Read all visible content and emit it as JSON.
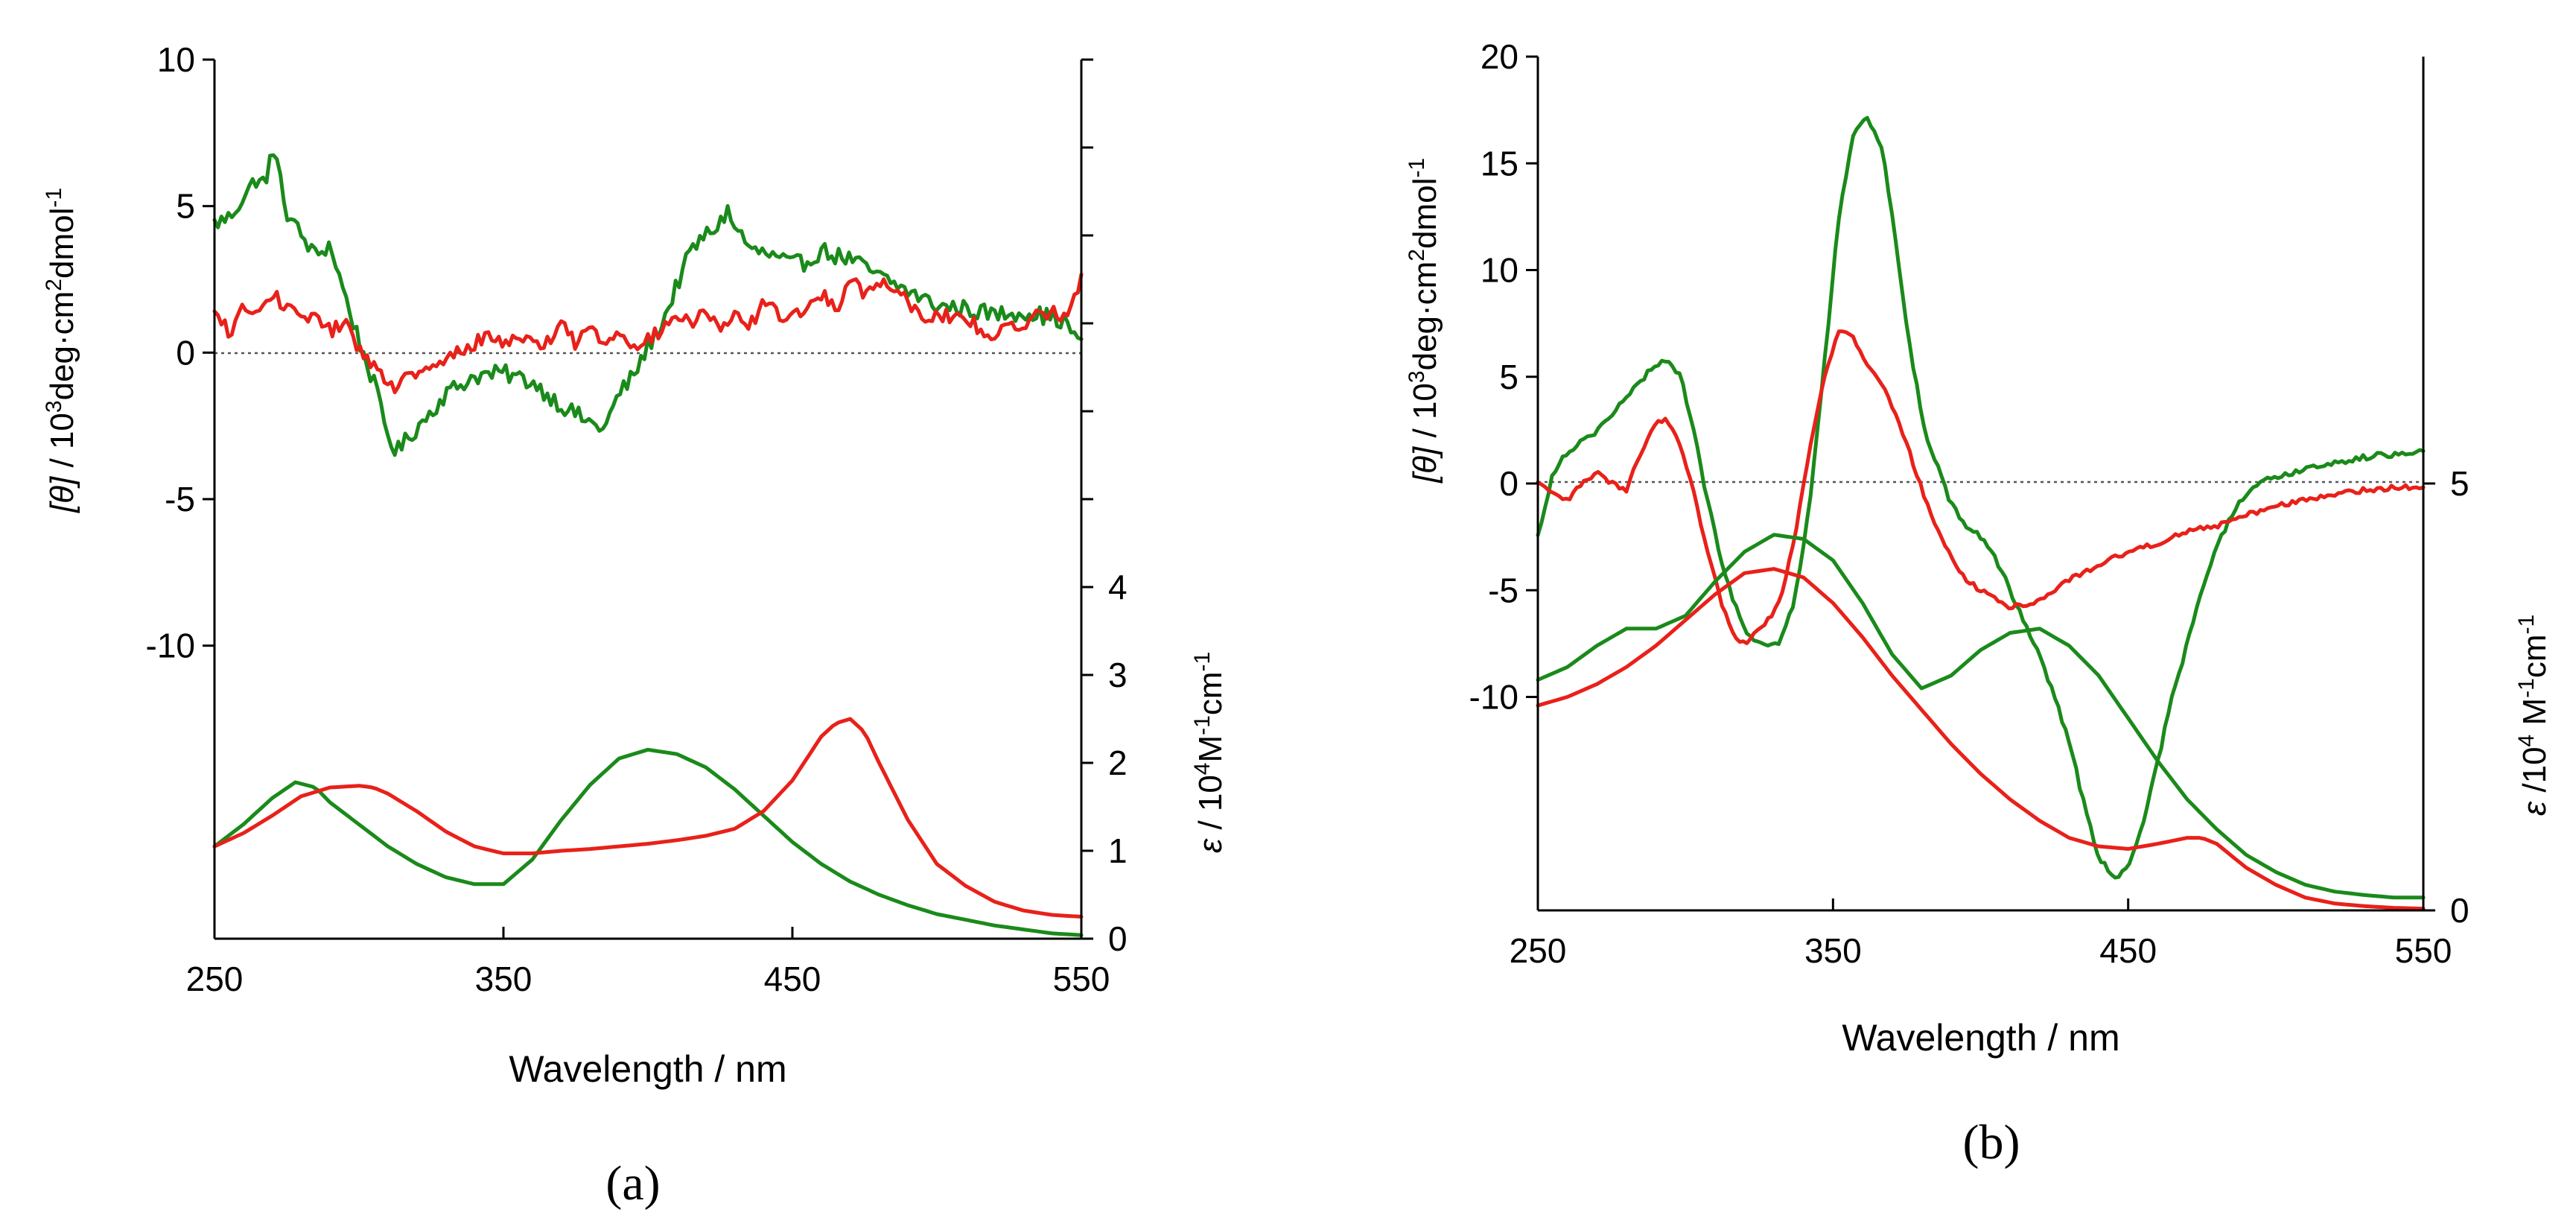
{
  "chart_data": [
    {
      "panel_label": "(a)",
      "type": "line",
      "xlabel": "Wavelength / nm",
      "x_ticks": [
        250,
        350,
        450,
        550
      ],
      "xlim": [
        250,
        550
      ],
      "cd_axis": {
        "label_a": "[θ]",
        "label_b": " / 10",
        "label_sup": "3",
        "label_c": "deg·cm",
        "label_sup2": "2",
        "label_d": "dmol",
        "label_sup3": "-1",
        "ylim": [
          -20,
          10
        ],
        "tick_values": [
          -10,
          -5,
          0,
          5,
          10
        ],
        "tick_labels": [
          "-10",
          "-5",
          "0",
          "5",
          "10"
        ]
      },
      "abs_axis": {
        "label_a": "ε",
        "label_b": " / 10",
        "label_sup": "4",
        "label_c": "M",
        "label_sup2": "-1",
        "label_d": "cm",
        "label_sup3": "-1",
        "ylim": [
          0,
          10
        ],
        "tick_values": [
          0,
          1,
          2,
          3,
          4
        ],
        "tick_labels": [
          "0",
          "1",
          "2",
          "3",
          "4"
        ],
        "minor_ticks": [
          5,
          6,
          7,
          8,
          9,
          10
        ]
      },
      "series": [
        {
          "name": "green CD",
          "axis": "cd",
          "color": "#1a8a1a",
          "x": [
            250,
            255,
            260,
            265,
            268,
            270,
            272,
            275,
            280,
            285,
            290,
            295,
            300,
            305,
            310,
            313,
            318,
            325,
            330,
            340,
            350,
            360,
            370,
            380,
            385,
            390,
            395,
            400,
            405,
            410,
            415,
            420,
            425,
            428,
            430,
            432,
            435,
            440,
            445,
            450,
            455,
            460,
            465,
            470,
            475,
            480,
            490,
            500,
            510,
            520,
            530,
            540,
            545,
            550
          ],
          "y": [
            4.4,
            4.6,
            5.3,
            6.0,
            5.7,
            7.2,
            6.2,
            4.8,
            4.0,
            3.3,
            3.7,
            2.0,
            0.4,
            -1.0,
            -2.8,
            -3.4,
            -2.8,
            -2.0,
            -1.4,
            -0.8,
            -0.7,
            -1.0,
            -1.8,
            -2.4,
            -2.6,
            -1.4,
            -0.8,
            0.2,
            1.0,
            2.3,
            3.5,
            4.0,
            4.4,
            5.0,
            4.1,
            4.2,
            3.5,
            3.4,
            3.2,
            3.0,
            3.1,
            3.5,
            3.3,
            3.2,
            2.9,
            2.6,
            2.1,
            1.6,
            1.5,
            1.3,
            1.4,
            1.2,
            1.0,
            0.2
          ],
          "noise": 0.3
        },
        {
          "name": "red CD",
          "axis": "cd",
          "color": "#e8211a",
          "x": [
            250,
            255,
            260,
            265,
            270,
            275,
            280,
            285,
            290,
            295,
            300,
            305,
            310,
            315,
            320,
            325,
            330,
            335,
            340,
            345,
            350,
            355,
            360,
            365,
            370,
            375,
            380,
            385,
            390,
            395,
            400,
            405,
            410,
            415,
            420,
            425,
            430,
            435,
            440,
            445,
            450,
            455,
            460,
            465,
            470,
            475,
            480,
            485,
            490,
            495,
            500,
            510,
            520,
            530,
            540,
            545,
            550
          ],
          "y": [
            1.3,
            0.7,
            1.5,
            1.3,
            2.0,
            1.6,
            1.0,
            1.4,
            0.7,
            1.0,
            0.2,
            -0.4,
            -1.2,
            -1.0,
            -0.7,
            -0.6,
            -0.3,
            0.1,
            0.3,
            0.6,
            0.3,
            0.7,
            0.2,
            0.4,
            1.0,
            0.3,
            0.9,
            0.3,
            0.8,
            0.3,
            0.4,
            0.8,
            1.3,
            0.9,
            1.5,
            0.7,
            1.2,
            0.9,
            1.7,
            1.3,
            1.2,
            1.6,
            2.0,
            1.4,
            2.7,
            2.0,
            2.4,
            2.3,
            1.8,
            1.2,
            1.3,
            1.1,
            0.6,
            1.0,
            1.5,
            1.2,
            2.5
          ],
          "noise": 0.25
        },
        {
          "name": "green absorption",
          "axis": "abs",
          "color": "#1a8a1a",
          "x": [
            250,
            260,
            270,
            278,
            285,
            290,
            300,
            310,
            320,
            330,
            340,
            350,
            360,
            370,
            380,
            390,
            400,
            410,
            420,
            430,
            440,
            450,
            460,
            470,
            480,
            490,
            500,
            520,
            540,
            550
          ],
          "y": [
            1.05,
            1.3,
            1.6,
            1.78,
            1.72,
            1.55,
            1.3,
            1.05,
            0.85,
            0.7,
            0.62,
            0.62,
            0.9,
            1.35,
            1.75,
            2.05,
            2.15,
            2.1,
            1.95,
            1.7,
            1.4,
            1.1,
            0.85,
            0.65,
            0.5,
            0.38,
            0.28,
            0.15,
            0.06,
            0.04
          ],
          "noise": 0
        },
        {
          "name": "red absorption",
          "axis": "abs",
          "color": "#e8211a",
          "x": [
            250,
            260,
            270,
            280,
            290,
            300,
            305,
            310,
            320,
            330,
            340,
            350,
            360,
            370,
            380,
            390,
            400,
            410,
            420,
            430,
            440,
            450,
            455,
            460,
            465,
            470,
            475,
            480,
            490,
            500,
            510,
            520,
            530,
            540,
            550
          ],
          "y": [
            1.05,
            1.2,
            1.4,
            1.62,
            1.72,
            1.74,
            1.72,
            1.65,
            1.45,
            1.22,
            1.05,
            0.97,
            0.97,
            1.0,
            1.02,
            1.05,
            1.08,
            1.12,
            1.17,
            1.25,
            1.45,
            1.8,
            2.05,
            2.3,
            2.45,
            2.5,
            2.35,
            2.0,
            1.35,
            0.85,
            0.6,
            0.42,
            0.32,
            0.27,
            0.25
          ],
          "noise": 0
        }
      ]
    },
    {
      "panel_label": "(b)",
      "type": "line",
      "xlabel": "Wavelength / nm",
      "x_ticks": [
        250,
        350,
        450,
        550
      ],
      "xlim": [
        250,
        550
      ],
      "cd_axis": {
        "label_a": "[θ]",
        "label_b": " / 10",
        "label_sup": "3",
        "label_c": "deg·cm",
        "label_sup2": "2",
        "label_d": "dmol",
        "label_sup3": "-1",
        "ylim": [
          -20,
          20
        ],
        "tick_values": [
          -10,
          -5,
          0,
          5,
          10,
          15,
          20
        ],
        "tick_labels": [
          "-10",
          "-5",
          "0",
          "5",
          "10",
          "15",
          "20"
        ]
      },
      "abs_axis": {
        "label_a": "ε",
        "label_b": " /10",
        "label_sup": "4",
        "label_c": " M",
        "label_sup2": "-1",
        "label_d": "cm",
        "label_sup3": "-1",
        "ylim": [
          0,
          10
        ],
        "tick_values": [
          0,
          5
        ],
        "tick_labels": [
          "0",
          "5"
        ],
        "minor_ticks": []
      },
      "series": [
        {
          "name": "green CD",
          "axis": "cd",
          "color": "#1a8a1a",
          "x": [
            250,
            255,
            260,
            265,
            270,
            275,
            280,
            285,
            290,
            293,
            298,
            302,
            307,
            312,
            317,
            320,
            325,
            330,
            333,
            337,
            342,
            347,
            352,
            357,
            362,
            367,
            372,
            377,
            382,
            385,
            390,
            395,
            400,
            405,
            410,
            415,
            420,
            425,
            430,
            435,
            440,
            445,
            450,
            455,
            460,
            465,
            470,
            475,
            480,
            485,
            490,
            495,
            500,
            510,
            520,
            530,
            540,
            550
          ],
          "y": [
            -2.5,
            0.5,
            1.5,
            2.0,
            2.5,
            3.2,
            4.0,
            4.8,
            5.6,
            5.8,
            5.2,
            3.0,
            -0.5,
            -3.5,
            -5.8,
            -6.8,
            -7.5,
            -7.6,
            -7.2,
            -5.5,
            -1.0,
            5.5,
            12.5,
            16.5,
            17.1,
            15.5,
            10.5,
            5.5,
            2.0,
            1.0,
            -1.0,
            -2.0,
            -2.5,
            -3.5,
            -5.0,
            -6.5,
            -8.0,
            -10.0,
            -12.0,
            -15.0,
            -17.5,
            -18.5,
            -18.0,
            -16.0,
            -13.0,
            -10.0,
            -7.5,
            -5.0,
            -3.0,
            -1.5,
            -0.5,
            0.0,
            0.3,
            0.7,
            1.0,
            1.2,
            1.4,
            1.6
          ],
          "noise": 0.15
        },
        {
          "name": "red CD",
          "axis": "cd",
          "color": "#e8211a",
          "x": [
            250,
            255,
            260,
            265,
            270,
            275,
            280,
            285,
            290,
            293,
            297,
            302,
            307,
            312,
            317,
            320,
            325,
            330,
            333,
            337,
            342,
            347,
            352,
            357,
            362,
            367,
            372,
            377,
            382,
            385,
            390,
            395,
            400,
            410,
            420,
            430,
            440,
            450,
            460,
            470,
            480,
            490,
            500,
            510,
            520,
            530,
            540,
            550
          ],
          "y": [
            0.0,
            -0.5,
            -0.8,
            0.0,
            0.5,
            0.0,
            -0.3,
            1.5,
            2.8,
            3.0,
            2.2,
            0.0,
            -3.0,
            -5.5,
            -7.2,
            -7.5,
            -6.8,
            -6.0,
            -5.0,
            -2.5,
            1.5,
            5.0,
            7.2,
            6.8,
            5.5,
            4.5,
            3.0,
            1.0,
            -1.0,
            -2.0,
            -3.5,
            -4.5,
            -5.0,
            -5.8,
            -5.5,
            -4.5,
            -3.8,
            -3.2,
            -2.8,
            -2.2,
            -2.0,
            -1.5,
            -1.0,
            -0.8,
            -0.5,
            -0.3,
            -0.2,
            -0.1
          ],
          "noise": 0.12
        },
        {
          "name": "green absorption",
          "axis": "abs",
          "color": "#1a8a1a",
          "x": [
            250,
            260,
            270,
            280,
            290,
            300,
            310,
            320,
            330,
            340,
            350,
            360,
            370,
            380,
            390,
            400,
            410,
            420,
            430,
            440,
            450,
            460,
            470,
            480,
            490,
            500,
            510,
            520,
            530,
            540,
            550
          ],
          "y": [
            2.7,
            2.85,
            3.1,
            3.3,
            3.3,
            3.45,
            3.85,
            4.2,
            4.4,
            4.35,
            4.1,
            3.6,
            3.0,
            2.6,
            2.75,
            3.05,
            3.25,
            3.3,
            3.1,
            2.75,
            2.25,
            1.75,
            1.3,
            0.95,
            0.65,
            0.45,
            0.3,
            0.22,
            0.18,
            0.15,
            0.15
          ],
          "noise": 0
        },
        {
          "name": "red absorption",
          "axis": "abs",
          "color": "#e8211a",
          "x": [
            250,
            260,
            270,
            280,
            290,
            300,
            310,
            320,
            330,
            340,
            350,
            360,
            370,
            380,
            390,
            400,
            410,
            420,
            430,
            440,
            450,
            460,
            470,
            475,
            480,
            490,
            500,
            510,
            520,
            530,
            540,
            550
          ],
          "y": [
            2.4,
            2.5,
            2.65,
            2.85,
            3.1,
            3.4,
            3.7,
            3.95,
            4.0,
            3.9,
            3.6,
            3.2,
            2.75,
            2.35,
            1.95,
            1.6,
            1.3,
            1.05,
            0.85,
            0.75,
            0.72,
            0.78,
            0.85,
            0.85,
            0.78,
            0.5,
            0.3,
            0.15,
            0.08,
            0.05,
            0.03,
            0.02
          ],
          "noise": 0
        }
      ]
    }
  ]
}
